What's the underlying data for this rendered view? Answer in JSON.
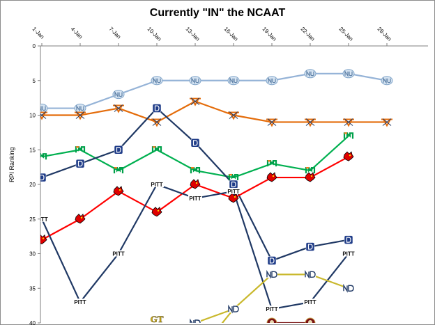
{
  "chart_data": {
    "type": "line",
    "title": "Currently \"IN\" the NCAAT",
    "xlabel": "",
    "ylabel": "RPI Ranking",
    "x_tick_labels": [
      "1-Jan",
      "4-Jan",
      "7-Jan",
      "10-Jan",
      "13-Jan",
      "16-Jan",
      "19-Jan",
      "22-Jan",
      "25-Jan",
      "28-Jan"
    ],
    "y_ticks": [
      0,
      5,
      10,
      15,
      20,
      25,
      30,
      35,
      40
    ],
    "ylim": [
      0,
      40
    ],
    "y_inverted": true,
    "x_axis_position": "top",
    "grid": false,
    "x_dates": [
      "1-Jan",
      "4-Jan",
      "7-Jan",
      "10-Jan",
      "13-Jan",
      "16-Jan",
      "19-Jan",
      "22-Jan",
      "25-Jan",
      "28-Jan"
    ],
    "series": [
      {
        "team": "North Carolina",
        "color": "#95b3d7",
        "marker": "unc-logo",
        "values": [
          9,
          9,
          7,
          5,
          5,
          5,
          5,
          4,
          4,
          5
        ]
      },
      {
        "team": "Virginia",
        "color": "#e46c0a",
        "marker": "virginia-logo",
        "values": [
          10,
          10,
          9,
          11,
          8,
          10,
          11,
          11,
          11,
          11
        ]
      },
      {
        "team": "Miami",
        "color": "#00b050",
        "marker": "miami-logo",
        "values": [
          16,
          15,
          18,
          15,
          18,
          19,
          17,
          18,
          13,
          null
        ]
      },
      {
        "team": "Duke",
        "color": "#1f3864",
        "marker": "duke-logo",
        "values": [
          19,
          17,
          15,
          9,
          14,
          20,
          31,
          29,
          28,
          null
        ]
      },
      {
        "team": "Louisville",
        "color": "#ff0000",
        "marker": "louisville-logo",
        "values": [
          28,
          25,
          21,
          24,
          20,
          22,
          19,
          19,
          16,
          null
        ]
      },
      {
        "team": "Pittsburgh",
        "color": "#1f3864",
        "marker": "pitt-logo",
        "values": [
          25,
          37,
          30,
          20,
          22,
          21,
          38,
          37,
          30,
          null
        ]
      },
      {
        "team": "Notre Dame",
        "color": "#c9b82c",
        "marker": "notre-dame-logo",
        "values": [
          null,
          null,
          null,
          null,
          40,
          38,
          33,
          33,
          35,
          null
        ]
      },
      {
        "team": "Florida State",
        "color": "#7f1f1f",
        "marker": "fsu-logo",
        "values": [
          null,
          null,
          null,
          null,
          null,
          null,
          40,
          40,
          null,
          null
        ]
      },
      {
        "team": "Georgia Tech",
        "color": "#c9b82c",
        "marker": "gatech-logo",
        "values": [
          null,
          null,
          null,
          39.5,
          null,
          null,
          null,
          null,
          null,
          null
        ]
      }
    ]
  }
}
